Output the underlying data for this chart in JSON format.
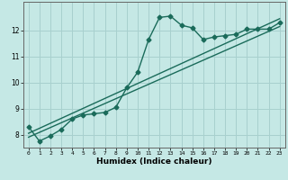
{
  "xlabel": "Humidex (Indice chaleur)",
  "bg_color": "#c5e8e5",
  "grid_color": "#a8d0ce",
  "line_color": "#1a6b5a",
  "xlim": [
    -0.5,
    23.5
  ],
  "ylim": [
    7.5,
    13.1
  ],
  "xticks": [
    0,
    1,
    2,
    3,
    4,
    5,
    6,
    7,
    8,
    9,
    10,
    11,
    12,
    13,
    14,
    15,
    16,
    17,
    18,
    19,
    20,
    21,
    22,
    23
  ],
  "yticks": [
    8,
    9,
    10,
    11,
    12
  ],
  "series1_x": [
    0,
    1,
    2,
    3,
    4,
    5,
    6,
    7,
    8,
    9,
    10,
    11,
    12,
    13,
    14,
    15,
    16,
    17,
    18,
    19,
    20,
    21,
    22,
    23
  ],
  "series1_y": [
    8.3,
    7.75,
    7.95,
    8.2,
    8.6,
    8.75,
    8.8,
    8.85,
    9.05,
    9.8,
    10.4,
    11.65,
    12.5,
    12.55,
    12.2,
    12.1,
    11.65,
    11.75,
    11.8,
    11.85,
    12.05,
    12.05,
    12.05,
    12.3
  ],
  "series2_x": [
    0,
    23
  ],
  "series2_y": [
    8.05,
    12.45
  ],
  "series3_x": [
    0,
    23
  ],
  "series3_y": [
    7.9,
    12.15
  ],
  "marker": "D",
  "markersize": 2.5,
  "linewidth": 1.0
}
